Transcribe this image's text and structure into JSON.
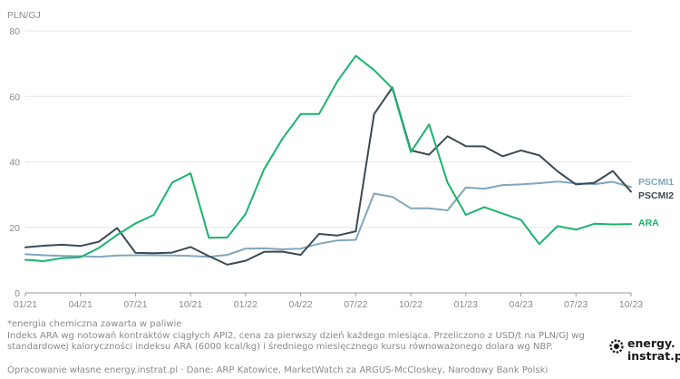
{
  "chart_data": {
    "type": "line",
    "unit_label": "PLN/GJ",
    "ylim": [
      0,
      80
    ],
    "yticks": [
      0,
      20,
      40,
      60,
      80
    ],
    "grid": "horizontal",
    "x_tick_labels": [
      "01/21",
      "04/21",
      "07/21",
      "10/21",
      "01/22",
      "04/22",
      "07/22",
      "10/22",
      "01/23",
      "04/23",
      "07/23",
      "10/23"
    ],
    "x": [
      "2021-01",
      "2021-02",
      "2021-03",
      "2021-04",
      "2021-05",
      "2021-06",
      "2021-07",
      "2021-08",
      "2021-09",
      "2021-10",
      "2021-11",
      "2021-12",
      "2022-01",
      "2022-02",
      "2022-03",
      "2022-04",
      "2022-05",
      "2022-06",
      "2022-07",
      "2022-08",
      "2022-09",
      "2022-10",
      "2022-11",
      "2022-12",
      "2023-01",
      "2023-02",
      "2023-03",
      "2023-04",
      "2023-05",
      "2023-06",
      "2023-07",
      "2023-08",
      "2023-09",
      "2023-10"
    ],
    "series": [
      {
        "name": "PSCMI1",
        "color": "#7fa6bd",
        "values": [
          11.8,
          11.5,
          11.3,
          11.2,
          11.0,
          11.4,
          11.5,
          11.5,
          11.4,
          11.3,
          11.0,
          11.6,
          13.5,
          13.6,
          13.3,
          13.5,
          15.0,
          16.0,
          16.2,
          30.3,
          29.3,
          25.8,
          25.8,
          25.2,
          32.2,
          31.8,
          32.9,
          33.1,
          33.5,
          34.0,
          33.4,
          33.2,
          33.9,
          32.3
        ]
      },
      {
        "name": "PSCMI2",
        "color": "#3b4a55",
        "values": [
          13.9,
          14.4,
          14.7,
          14.3,
          15.6,
          19.8,
          12.2,
          12.1,
          12.3,
          14.0,
          11.2,
          8.6,
          9.8,
          12.5,
          12.6,
          11.6,
          18.0,
          17.5,
          18.8,
          54.6,
          62.7,
          43.5,
          42.2,
          47.8,
          44.8,
          44.7,
          41.7,
          43.5,
          42.0,
          37.1,
          33.1,
          33.6,
          37.2,
          30.9
        ]
      },
      {
        "name": "ARA",
        "color": "#1bb36e",
        "values": [
          10.1,
          9.7,
          10.6,
          10.9,
          13.7,
          17.7,
          21.2,
          23.8,
          33.7,
          36.5,
          16.8,
          16.9,
          24.1,
          37.7,
          47.0,
          54.6,
          54.6,
          64.6,
          72.4,
          68.0,
          62.4,
          43.0,
          51.4,
          33.7,
          23.8,
          26.2,
          24.2,
          22.3,
          14.9,
          20.4,
          19.3,
          21.1,
          20.9,
          21.0
        ]
      }
    ]
  },
  "footnote": {
    "line1": "*energia chemiczna zawarta w paliwie",
    "line2": "Indeks ARA wg notowań kontraktów ciągłych API2, cena za pierwszy dzień każdego miesiąca. Przeliczono z USD/t na PLN/GJ wg",
    "line3": "standardowej kaloryczności indeksu ARA (6000 kcal/kg) i średniego miesięcznego kursu równoważonego dolara wg NBP."
  },
  "credit": "Opracowanie własne energy.instrat.pl · Dane: ARP Katowice, MarketWatch za ARGUS-McCloskey, Narodowy Bank Polski",
  "logo": {
    "line1": "energy.",
    "line2": "instrat.pl",
    "icon": "gear-icon"
  }
}
